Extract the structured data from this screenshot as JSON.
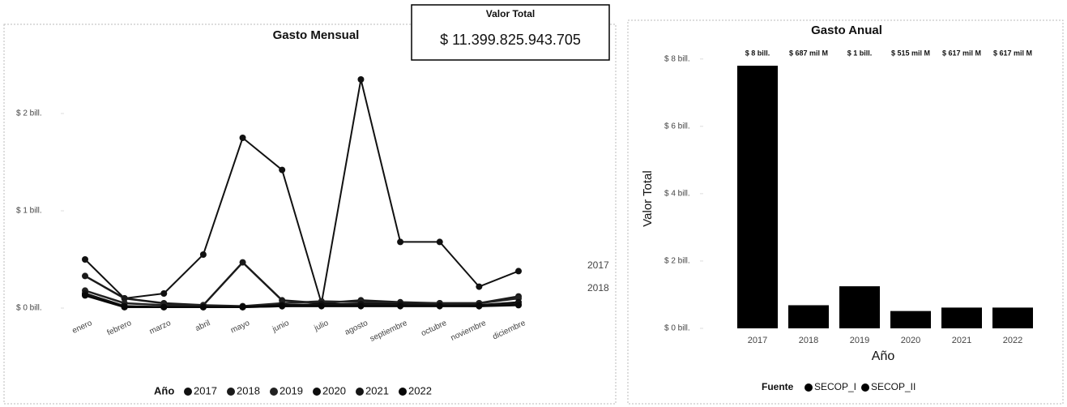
{
  "card": {
    "title": "Valor Total",
    "value": "$ 11.399.825.943.705"
  },
  "chart_data": [
    {
      "type": "line",
      "title": "Gasto Mensual",
      "categories": [
        "enero",
        "febrero",
        "marzo",
        "abril",
        "mayo",
        "junio",
        "julio",
        "agosto",
        "septiembre",
        "octubre",
        "noviembre",
        "diciembre"
      ],
      "series": [
        {
          "name": "2017",
          "color": "#111111",
          "values": [
            0.5,
            0.1,
            0.15,
            0.55,
            1.75,
            1.42,
            0.05,
            2.35,
            0.68,
            0.68,
            0.22,
            0.38
          ]
        },
        {
          "name": "2018",
          "color": "#1a1a1a",
          "values": [
            0.33,
            0.1,
            0.05,
            0.03,
            0.47,
            0.08,
            0.05,
            0.08,
            0.06,
            0.05,
            0.05,
            0.12
          ]
        },
        {
          "name": "2019",
          "color": "#222222",
          "values": [
            0.18,
            0.05,
            0.03,
            0.03,
            0.02,
            0.05,
            0.07,
            0.06,
            0.05,
            0.05,
            0.05,
            0.1
          ]
        },
        {
          "name": "2020",
          "color": "#0d0d0d",
          "values": [
            0.15,
            0.02,
            0.01,
            0.01,
            0.01,
            0.03,
            0.04,
            0.04,
            0.04,
            0.03,
            0.03,
            0.06
          ]
        },
        {
          "name": "2021",
          "color": "#151515",
          "values": [
            0.14,
            0.01,
            0.01,
            0.01,
            0.01,
            0.02,
            0.03,
            0.03,
            0.03,
            0.03,
            0.02,
            0.04
          ]
        },
        {
          "name": "2022",
          "color": "#080808",
          "values": [
            0.13,
            0.01,
            0.01,
            0.01,
            0.01,
            0.02,
            0.02,
            0.02,
            0.02,
            0.02,
            0.02,
            0.03
          ]
        }
      ],
      "legend_title": "Año",
      "ylim": [
        0,
        2.5
      ],
      "yticks": [
        {
          "value": 0,
          "label": "$ 0 bill."
        },
        {
          "value": 1,
          "label": "$ 1 bill."
        },
        {
          "value": 2,
          "label": "$ 2 bill."
        }
      ]
    },
    {
      "type": "bar",
      "title": "Gasto Anual",
      "categories": [
        "2017",
        "2018",
        "2019",
        "2020",
        "2021",
        "2022"
      ],
      "values": [
        7.8,
        0.687,
        1.25,
        0.515,
        0.617,
        0.617
      ],
      "value_labels": [
        "$ 8 bill.",
        "$ 687 mil M",
        "$ 1 bill.",
        "$ 515 mil M",
        "$ 617 mil M",
        "$ 617 mil M"
      ],
      "color": "#000000",
      "x_label": "Año",
      "y_label": "Valor Total",
      "ylim": [
        0,
        8.5
      ],
      "yticks": [
        {
          "value": 0,
          "label": "$ 0 bill."
        },
        {
          "value": 2,
          "label": "$ 2 bill."
        },
        {
          "value": 4,
          "label": "$ 4 bill."
        },
        {
          "value": 6,
          "label": "$ 6 bill."
        },
        {
          "value": 8,
          "label": "$ 8 bill."
        }
      ],
      "legend_title": "Fuente",
      "legend": [
        "SECOP_I",
        "SECOP_II"
      ]
    }
  ]
}
